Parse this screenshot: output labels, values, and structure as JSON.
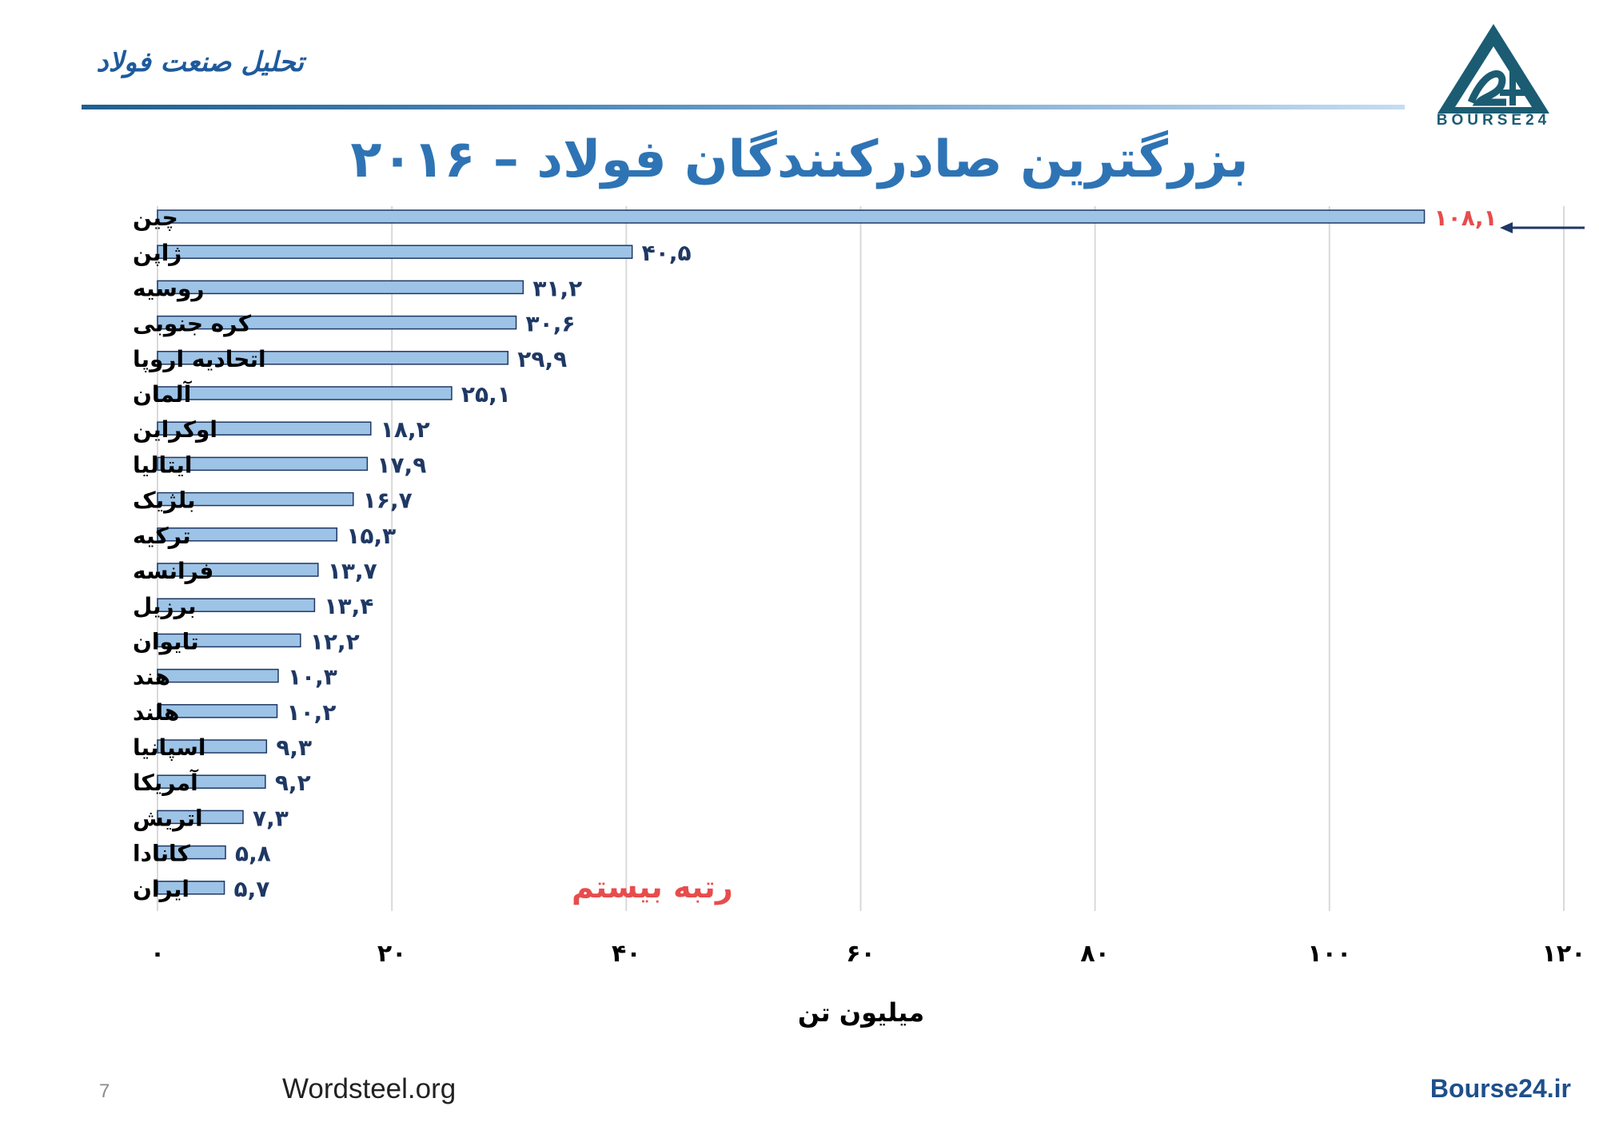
{
  "header": {
    "brand_text": "تحلیل صنعت فولاد",
    "logo_text": "BOURSE24"
  },
  "colors": {
    "title": "#2e74b5",
    "bar_fill": "#9dc3e6",
    "bar_stroke": "#1f3864",
    "value_label": "#1f3864",
    "highlight": "#e84c4c",
    "grid": "#d9d9d9"
  },
  "chart_data": {
    "type": "bar",
    "orientation": "horizontal",
    "title": "بزرگترین صادرکنندگان فولاد – ۲۰۱۶",
    "xlabel": "میلیون تن",
    "ylabel": "",
    "xlim": [
      0,
      120
    ],
    "x_ticks": [
      0,
      20,
      40,
      60,
      80,
      100,
      120
    ],
    "x_tick_labels": [
      "۰",
      "۲۰",
      "۴۰",
      "۶۰",
      "۸۰",
      "۱۰۰",
      "۱۲۰"
    ],
    "grid": "vertical",
    "categories": [
      "چین",
      "ژاپن",
      "روسیه",
      "کره جنوبی",
      "اتحادیه اروپا",
      "آلمان",
      "اوکراین",
      "ایتالیا",
      "بلژیک",
      "ترکیه",
      "فرانسه",
      "برزیل",
      "تایوان",
      "هند",
      "هلند",
      "اسپانیا",
      "آمریکا",
      "اتریش",
      "کانادا",
      "ایران"
    ],
    "values": [
      108.1,
      40.5,
      31.2,
      30.6,
      29.9,
      25.1,
      18.2,
      17.9,
      16.7,
      15.3,
      13.7,
      13.4,
      12.2,
      10.3,
      10.2,
      9.3,
      9.2,
      7.3,
      5.8,
      5.7
    ],
    "value_labels": [
      "۱۰۸,۱",
      "۴۰,۵",
      "۳۱,۲",
      "۳۰,۶",
      "۲۹,۹",
      "۲۵,۱",
      "۱۸,۲",
      "۱۷,۹",
      "۱۶,۷",
      "۱۵,۳",
      "۱۳,۷",
      "۱۳,۴",
      "۱۲,۲",
      "۱۰,۳",
      "۱۰,۲",
      "۹,۳",
      "۹,۲",
      "۷,۳",
      "۵,۸",
      "۵,۷"
    ],
    "highlighted_index": 0,
    "annotation": "رتبه بیستم"
  },
  "footer": {
    "page_number": "7",
    "source": "Wordsteel.org",
    "site": "Bourse24.ir"
  }
}
